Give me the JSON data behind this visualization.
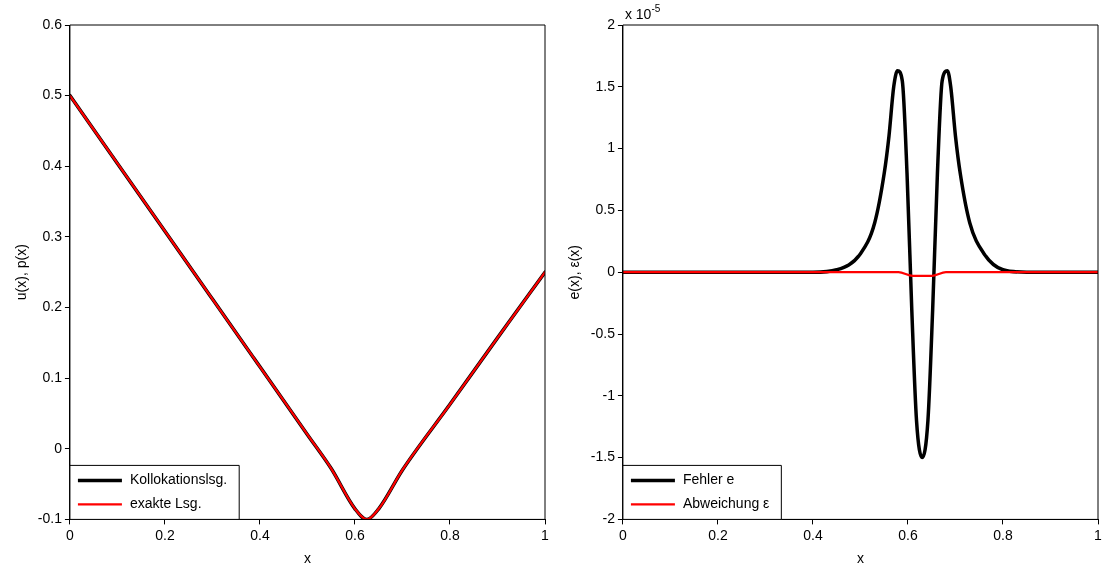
{
  "chart_data": [
    {
      "type": "line",
      "xlabel": "x",
      "ylabel": "u(x), p(x)",
      "xlim": [
        0,
        1
      ],
      "ylim": [
        -0.1,
        0.6
      ],
      "xticks": [
        0,
        0.2,
        0.4,
        0.6,
        0.8,
        1
      ],
      "yticks": [
        -0.1,
        0,
        0.1,
        0.2,
        0.3,
        0.4,
        0.5,
        0.6
      ],
      "grid": false,
      "legend": "bottom left",
      "line_style": "solid",
      "marker": "none",
      "series": [
        {
          "name": "Kollokationslsg.",
          "color": "#000000",
          "x": [
            0,
            0.1,
            0.2,
            0.3,
            0.4,
            0.5,
            0.55,
            0.6,
            0.625,
            0.65,
            0.7,
            0.8,
            0.9,
            1
          ],
          "values": [
            0.5,
            0.404,
            0.308,
            0.212,
            0.116,
            0.02,
            -0.028,
            -0.085,
            -0.1,
            -0.085,
            -0.03,
            0.063,
            0.157,
            0.25
          ]
        },
        {
          "name": "exakte Lsg.",
          "color": "#ff0000",
          "x": [
            0,
            0.1,
            0.2,
            0.3,
            0.4,
            0.5,
            0.55,
            0.6,
            0.625,
            0.65,
            0.7,
            0.8,
            0.9,
            1
          ],
          "values": [
            0.5,
            0.404,
            0.308,
            0.212,
            0.116,
            0.02,
            -0.028,
            -0.085,
            -0.1,
            -0.085,
            -0.03,
            0.063,
            0.157,
            0.25
          ]
        }
      ]
    },
    {
      "type": "line",
      "xlabel": "x",
      "ylabel": "e(x), ε(x)",
      "xlim": [
        0,
        1
      ],
      "ylim": [
        -2,
        2
      ],
      "xticks": [
        0,
        0.2,
        0.4,
        0.6,
        0.8,
        1
      ],
      "yticks": [
        -2,
        -1.5,
        -1,
        -0.5,
        0,
        0.5,
        1,
        1.5,
        2
      ],
      "annotations": [
        "x 10$^{-5}$"
      ],
      "grid": false,
      "legend": "bottom left",
      "line_style": "solid",
      "marker": "none",
      "series": [
        {
          "name": "Fehler e",
          "color": "#000000",
          "x": [
            0,
            0.4,
            0.45,
            0.5,
            0.53,
            0.55,
            0.56,
            0.57,
            0.578,
            0.588,
            0.598,
            0.608,
            0.618,
            0.63,
            0.642,
            0.652,
            0.662,
            0.672,
            0.683,
            0.69,
            0.7,
            0.71,
            0.73,
            0.76,
            0.8,
            0.85,
            1
          ],
          "values": [
            0,
            0,
            0.02,
            0.15,
            0.4,
            0.8,
            1.1,
            1.5,
            1.63,
            1.55,
            0.8,
            -0.3,
            -1.2,
            -1.5,
            -1.2,
            -0.3,
            0.8,
            1.55,
            1.63,
            1.5,
            1.1,
            0.8,
            0.4,
            0.15,
            0.02,
            0,
            0
          ]
        },
        {
          "name": "Abweichung ε",
          "color": "#ff0000",
          "x": [
            0,
            0.58,
            0.61,
            0.63,
            0.65,
            0.68,
            1
          ],
          "values": [
            0,
            0,
            -0.03,
            -0.03,
            -0.03,
            0,
            0
          ]
        }
      ]
    }
  ]
}
